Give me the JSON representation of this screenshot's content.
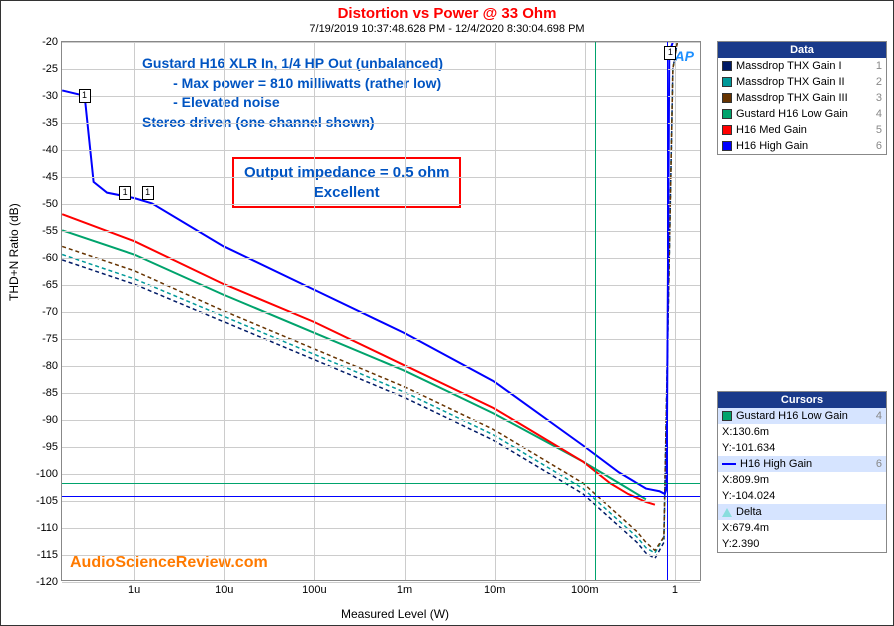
{
  "title": {
    "text": "Distortion vs Power @ 33 Ohm",
    "color": "#ff0000"
  },
  "timestamp": {
    "text": "7/19/2019 10:37:48.628 PM - 12/4/2020 8:30:04.698 PM",
    "color": "#000000"
  },
  "axes": {
    "ylabel": "THD+N Ratio (dB)",
    "xlabel": "Measured Level (W)",
    "ylim": [
      -120,
      -20
    ],
    "ytick_step": 5,
    "xticks_log": [
      {
        "label": "1u",
        "exp": -6
      },
      {
        "label": "10u",
        "exp": -5
      },
      {
        "label": "100u",
        "exp": -4
      },
      {
        "label": "1m",
        "exp": -3
      },
      {
        "label": "10m",
        "exp": -2
      },
      {
        "label": "100m",
        "exp": -1
      },
      {
        "label": "1",
        "exp": 0
      }
    ],
    "xlog_min_exp": -6.8,
    "xlog_max_exp": 0.3,
    "grid_color": "#cccccc",
    "background_color": "#ffffff"
  },
  "annotations": {
    "block1_color": "#0054c2",
    "block1_lines": [
      "Gustard H16 XLR In, 1/4 HP Out (unbalanced)",
      "        - Max power = 810 milliwatts (rather low)",
      "        - Elevated noise",
      "Stereo driven (one channel shown)"
    ],
    "box_color_border": "#ff0000",
    "box_color_text": "#0054c2",
    "box_lines": [
      "Output impedance = 0.5 ohm",
      "Excellent"
    ],
    "watermark": {
      "text": "AudioScienceReview.com",
      "color": "#ff7a00"
    },
    "ap_logo": {
      "text": "AP",
      "color": "#1e90ff"
    }
  },
  "legend_data": {
    "title": "Data",
    "header_bg": "#1a3a8a",
    "items": [
      {
        "label": "Massdrop THX Gain I",
        "color": "#001a66",
        "suffix": "1"
      },
      {
        "label": "Massdrop THX Gain II",
        "color": "#009999",
        "suffix": "2"
      },
      {
        "label": "Massdrop THX Gain III",
        "color": "#663300",
        "suffix": "3"
      },
      {
        "label": "Gustard H16 Low Gain",
        "color": "#00a36c",
        "suffix": "4"
      },
      {
        "label": "H16 Med Gain",
        "color": "#ff0000",
        "suffix": "5"
      },
      {
        "label": "H16 High Gain",
        "color": "#0000ff",
        "suffix": "6"
      }
    ]
  },
  "legend_cursors": {
    "title": "Cursors",
    "header_bg": "#1a3a8a",
    "items": [
      {
        "type": "series",
        "swatch": "#00a36c",
        "label": "Gustard H16 Low Gain",
        "suffix": "4"
      },
      {
        "type": "val",
        "label": "X:130.6m"
      },
      {
        "type": "val",
        "label": "Y:-101.634"
      },
      {
        "type": "series",
        "swatch": "#0000ff",
        "label": "H16 High Gain",
        "suffix": "6",
        "line": true
      },
      {
        "type": "val",
        "label": "X:809.9m"
      },
      {
        "type": "val",
        "label": "Y:-104.024"
      },
      {
        "type": "delta",
        "label": "Delta"
      },
      {
        "type": "val",
        "label": "X:679.4m"
      },
      {
        "type": "val",
        "label": "Y:2.390"
      }
    ]
  },
  "cursors": {
    "h1": {
      "y": -101.634,
      "color": "#00a36c"
    },
    "v1": {
      "xexp": -0.884,
      "color": "#00a36c"
    },
    "h2": {
      "y": -104.024,
      "color": "#0000ff"
    },
    "v2": {
      "xexp": -0.092,
      "color": "#0000ff"
    }
  },
  "markers": [
    {
      "xexp": -6.55,
      "y": -30,
      "n": "1"
    },
    {
      "xexp": -6.1,
      "y": -48,
      "n": "1"
    },
    {
      "xexp": -5.85,
      "y": -48,
      "n": "1"
    },
    {
      "xexp": -0.05,
      "y": -22,
      "n": "1"
    }
  ],
  "curves": [
    {
      "color": "#001a66",
      "dash": "4,3",
      "width": 1.5,
      "pts": [
        [
          -6.8,
          -60.5
        ],
        [
          -6,
          -65
        ],
        [
          -5,
          -72
        ],
        [
          -4,
          -79
        ],
        [
          -3,
          -86
        ],
        [
          -2,
          -94
        ],
        [
          -1,
          -104
        ],
        [
          -0.6,
          -110
        ],
        [
          -0.4,
          -113
        ],
        [
          -0.3,
          -115
        ],
        [
          -0.2,
          -116
        ],
        [
          -0.1,
          -113
        ],
        [
          0,
          -25
        ],
        [
          0.05,
          -20
        ]
      ]
    },
    {
      "color": "#009999",
      "dash": "4,3",
      "width": 1.5,
      "pts": [
        [
          -6.8,
          -59.5
        ],
        [
          -6,
          -64
        ],
        [
          -5,
          -71
        ],
        [
          -4,
          -78
        ],
        [
          -3,
          -85
        ],
        [
          -2,
          -93
        ],
        [
          -1,
          -103
        ],
        [
          -0.6,
          -109
        ],
        [
          -0.4,
          -112
        ],
        [
          -0.3,
          -114
        ],
        [
          -0.2,
          -115
        ],
        [
          -0.1,
          -112
        ],
        [
          0,
          -25
        ],
        [
          0.05,
          -20
        ]
      ]
    },
    {
      "color": "#663300",
      "dash": "4,3",
      "width": 1.5,
      "pts": [
        [
          -6.8,
          -58
        ],
        [
          -6,
          -62.5
        ],
        [
          -5,
          -70
        ],
        [
          -4,
          -77
        ],
        [
          -3,
          -84
        ],
        [
          -2,
          -92
        ],
        [
          -1,
          -102
        ],
        [
          -0.6,
          -108
        ],
        [
          -0.4,
          -111
        ],
        [
          -0.3,
          -113
        ],
        [
          -0.2,
          -114.5
        ],
        [
          -0.1,
          -112
        ],
        [
          0,
          -25
        ],
        [
          0.05,
          -20
        ]
      ]
    },
    {
      "color": "#00a36c",
      "dash": "",
      "width": 2,
      "pts": [
        [
          -6.8,
          -55
        ],
        [
          -6,
          -59.5
        ],
        [
          -5,
          -67
        ],
        [
          -4,
          -74
        ],
        [
          -3,
          -81
        ],
        [
          -2,
          -89
        ],
        [
          -1,
          -98
        ],
        [
          -0.7,
          -101
        ],
        [
          -0.5,
          -103
        ],
        [
          -0.35,
          -104.5
        ],
        [
          -0.3,
          -105
        ]
      ]
    },
    {
      "color": "#ff0000",
      "dash": "",
      "width": 2,
      "pts": [
        [
          -6.8,
          -52
        ],
        [
          -6,
          -57
        ],
        [
          -5,
          -65
        ],
        [
          -4,
          -72
        ],
        [
          -3,
          -80
        ],
        [
          -2,
          -88
        ],
        [
          -1,
          -98
        ],
        [
          -0.7,
          -102
        ],
        [
          -0.5,
          -104
        ],
        [
          -0.3,
          -105.5
        ],
        [
          -0.2,
          -106
        ]
      ]
    },
    {
      "color": "#0000ff",
      "dash": "",
      "width": 2,
      "pts": [
        [
          -6.8,
          -29
        ],
        [
          -6.55,
          -30
        ],
        [
          -6.45,
          -46
        ],
        [
          -6.3,
          -48
        ],
        [
          -6,
          -49
        ],
        [
          -5.8,
          -50
        ],
        [
          -5,
          -58
        ],
        [
          -4,
          -66
        ],
        [
          -3,
          -74
        ],
        [
          -2,
          -83
        ],
        [
          -1,
          -95
        ],
        [
          -0.6,
          -100
        ],
        [
          -0.3,
          -103
        ],
        [
          -0.15,
          -103.5
        ],
        [
          -0.09,
          -104
        ],
        [
          -0.07,
          -103
        ],
        [
          -0.05,
          -50
        ],
        [
          -0.04,
          -22
        ],
        [
          0,
          -20
        ]
      ]
    }
  ]
}
